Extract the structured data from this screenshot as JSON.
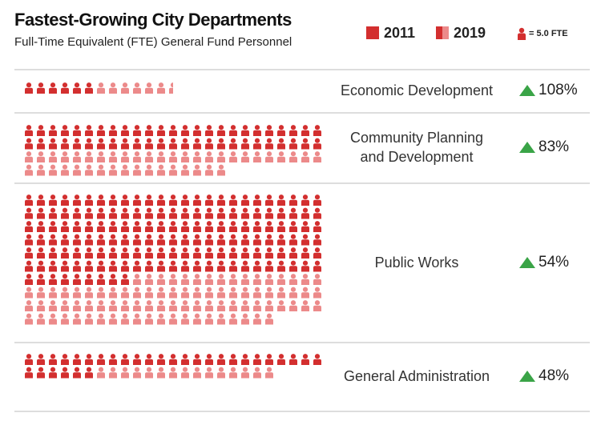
{
  "header": {
    "title": "Fastest-Growing City Departments",
    "subtitle": "Full-Time Equivalent (FTE) General Fund Personnel"
  },
  "legend": {
    "label_2011": "2011",
    "label_2019": "2019",
    "unit_label": "= 5.0 FTE"
  },
  "colors": {
    "color_2011": "#d32f2f",
    "color_2019": "#ec8a8a",
    "growth_arrow": "#3aa447",
    "rule": "#bbbbbb"
  },
  "chart_data": {
    "type": "pictograph",
    "unit_fte_per_icon": 5.0,
    "series": [
      {
        "name": "2011",
        "color": "#d32f2f"
      },
      {
        "name": "2019",
        "color": "#ec8a8a"
      }
    ],
    "departments": [
      {
        "name": "Economic Development",
        "label_lines": [
          "Economic Development"
        ],
        "fte_2011": 30,
        "fte_2019": 62.5,
        "growth": "108%",
        "growth_value": 108
      },
      {
        "name": "Community Planning and Development",
        "label_lines": [
          "Community Planning",
          "and Development"
        ],
        "fte_2011": 250,
        "fte_2019": 460,
        "growth": "83%",
        "growth_value": 83
      },
      {
        "name": "Public Works",
        "label_lines": [
          "Public Works"
        ],
        "fte_2011": 795,
        "fte_2019": 1230,
        "growth": "54%",
        "growth_value": 54
      },
      {
        "name": "General Administration",
        "label_lines": [
          "General Administration"
        ],
        "fte_2011": 155,
        "fte_2019": 230,
        "growth": "48%",
        "growth_value": 48
      }
    ]
  }
}
